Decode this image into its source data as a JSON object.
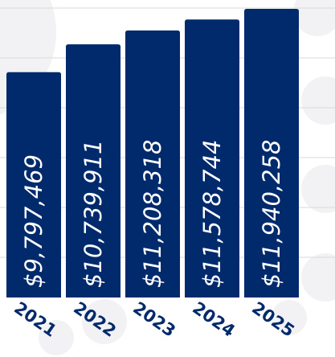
{
  "colors": {
    "bar": "#002a6c",
    "grid": "#d9d9d9",
    "label": "#002a6c",
    "decor": "#f2f2f4"
  },
  "chart_data": {
    "type": "bar",
    "categories": [
      "2021",
      "2022",
      "2023",
      "2024",
      "2025"
    ],
    "values": [
      9797469,
      10739911,
      11208318,
      11578744,
      11940258
    ],
    "value_labels": [
      "$9,797,469",
      "$10,739,911",
      "$11,208,318",
      "$11,578,744",
      "$11,940,258"
    ],
    "title": "",
    "xlabel": "",
    "ylabel": "",
    "grid": true,
    "legend": "none"
  }
}
